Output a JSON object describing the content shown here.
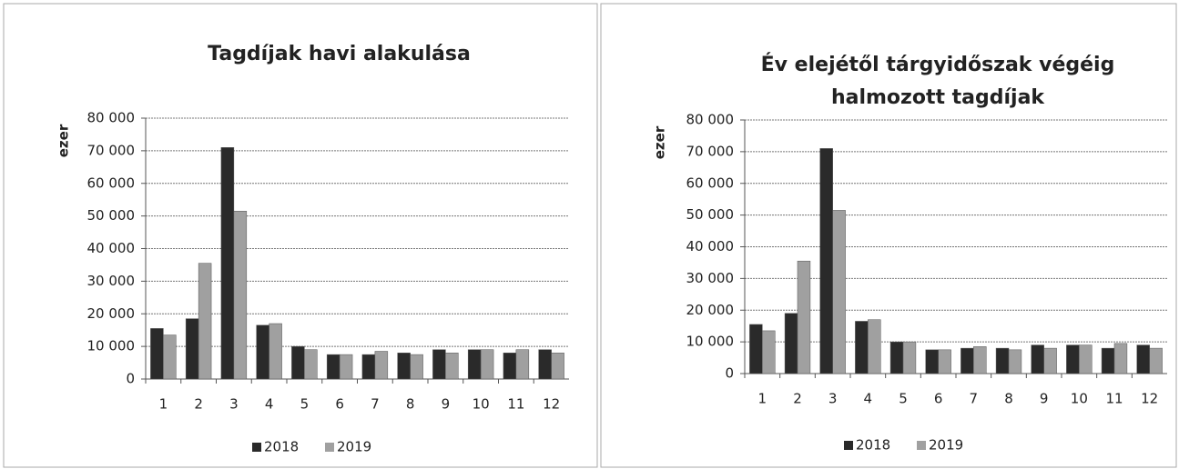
{
  "chart_data": [
    {
      "type": "bar",
      "title": [
        "Tagdíjak havi alakulása"
      ],
      "y_label": "ezer",
      "categories": [
        "1",
        "2",
        "3",
        "4",
        "5",
        "6",
        "7",
        "8",
        "9",
        "10",
        "11",
        "12"
      ],
      "series": [
        {
          "name": "2018",
          "color": "#2a2a2a",
          "values": [
            15500,
            18500,
            71000,
            16500,
            10000,
            7500,
            7500,
            8000,
            9000,
            9000,
            8000,
            9000
          ]
        },
        {
          "name": "2019",
          "color": "#a0a0a0",
          "values": [
            13500,
            35500,
            51500,
            17000,
            9000,
            7500,
            8500,
            7500,
            8000,
            9000,
            9000,
            8000
          ]
        }
      ],
      "ylim": [
        0,
        80000
      ],
      "yticks": [
        0,
        {
          "value": 10000,
          "label": "10 000"
        },
        {
          "value": 20000,
          "label": "20 000"
        },
        {
          "value": 30000,
          "label": "30 000"
        },
        {
          "value": 40000,
          "label": "40 000"
        },
        {
          "value": 50000,
          "label": "50 000"
        },
        {
          "value": 60000,
          "label": "60 000"
        },
        {
          "value": 70000,
          "label": "70 000"
        },
        {
          "value": 80000,
          "label": "80 000"
        }
      ],
      "grid": true,
      "legend": "bottom"
    },
    {
      "type": "bar",
      "title": [
        "Év elejétől tárgyidőszak végéig",
        "halmozott tagdíjak"
      ],
      "y_label": "ezer",
      "categories": [
        "1",
        "2",
        "3",
        "4",
        "5",
        "6",
        "7",
        "8",
        "9",
        "10",
        "11",
        "12"
      ],
      "series": [
        {
          "name": "2018",
          "color": "#2a2a2a",
          "values": [
            15500,
            19000,
            71000,
            16500,
            10000,
            7500,
            8000,
            8000,
            9000,
            9000,
            8000,
            9000
          ]
        },
        {
          "name": "2019",
          "color": "#a0a0a0",
          "values": [
            13500,
            35500,
            51500,
            17000,
            10000,
            7500,
            8500,
            7500,
            8000,
            9000,
            9500,
            8000
          ]
        }
      ],
      "ylim": [
        0,
        80000
      ],
      "yticks": [
        0,
        {
          "value": 10000,
          "label": "10 000"
        },
        {
          "value": 20000,
          "label": "20 000"
        },
        {
          "value": 30000,
          "label": "30 000"
        },
        {
          "value": 40000,
          "label": "40 000"
        },
        {
          "value": 50000,
          "label": "50 000"
        },
        {
          "value": 60000,
          "label": "60 000"
        },
        {
          "value": 70000,
          "label": "70 000"
        },
        {
          "value": 80000,
          "label": "80 000"
        }
      ],
      "grid": true,
      "legend": "bottom"
    }
  ]
}
